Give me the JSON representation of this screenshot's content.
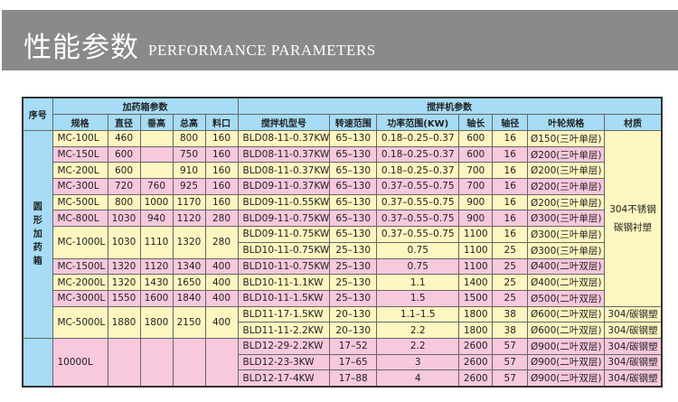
{
  "banner": {
    "title_cn": "性能参数",
    "title_en": "PERFORMANCE PARAMETERS"
  },
  "table": {
    "header": {
      "seq": "序号",
      "tank_group": "加药箱参数",
      "mixer_group": "搅拌机参数",
      "cols": [
        "规格",
        "直径",
        "垂高",
        "总高",
        "料口",
        "搅拌机型号",
        "转速范围",
        "功率范围(KW)",
        "轴长",
        "轴径",
        "叶轮规格",
        "材质"
      ]
    },
    "groups": [
      {
        "label": "圆形加药箱"
      },
      {
        "label": ""
      }
    ],
    "tanks": [
      {
        "spec": "MC-100L",
        "dia": "460",
        "vh": "",
        "th": "800",
        "port": "160"
      },
      {
        "spec": "MC-150L",
        "dia": "600",
        "vh": "",
        "th": "750",
        "port": "160"
      },
      {
        "spec": "MC-200L",
        "dia": "600",
        "vh": "",
        "th": "910",
        "port": "160"
      },
      {
        "spec": "MC-300L",
        "dia": "720",
        "vh": "760",
        "th": "925",
        "port": "160"
      },
      {
        "spec": "MC-500L",
        "dia": "800",
        "vh": "1000",
        "th": "1170",
        "port": "160"
      },
      {
        "spec": "MC-800L",
        "dia": "1030",
        "vh": "940",
        "th": "1120",
        "port": "280"
      },
      {
        "spec": "MC-1000L",
        "dia": "1030",
        "vh": "1110",
        "th": "1320",
        "port": "280"
      },
      {
        "spec": "MC-1500L",
        "dia": "1320",
        "vh": "1120",
        "th": "1340",
        "port": "400"
      },
      {
        "spec": "MC-2000L",
        "dia": "1320",
        "vh": "1430",
        "th": "1650",
        "port": "400"
      },
      {
        "spec": "MC-3000L",
        "dia": "1550",
        "vh": "1600",
        "th": "1840",
        "port": "400"
      },
      {
        "spec": "MC-5000L",
        "dia": "1880",
        "vh": "1800",
        "th": "2150",
        "port": "400"
      },
      {
        "spec": "10000L",
        "dia": "",
        "vh": "",
        "th": "",
        "port": ""
      }
    ],
    "mixers": [
      {
        "model": "BLD08-11-0.37KW",
        "speed": "65–130",
        "power": "0.18–0.25–0.37",
        "shaft_len": "600",
        "shaft_dia": "16",
        "impeller": "Ø150(三叶单层)"
      },
      {
        "model": "BLD08-11-0.37KW",
        "speed": "65–130",
        "power": "0.18–0.25–0.37",
        "shaft_len": "600",
        "shaft_dia": "16",
        "impeller": "Ø200(三叶单层)"
      },
      {
        "model": "BLD08-11-0.37KW",
        "speed": "65–130",
        "power": "0.18–0.25–0.37",
        "shaft_len": "700",
        "shaft_dia": "16",
        "impeller": "Ø200(三叶单层)"
      },
      {
        "model": "BLD09-11-0.37KW",
        "speed": "65–130",
        "power": "0.37–0.55–0.75",
        "shaft_len": "700",
        "shaft_dia": "16",
        "impeller": "Ø200(三叶单层)"
      },
      {
        "model": "BLD09-11-0.55KW",
        "speed": "65–130",
        "power": "0.37–0.55–0.75",
        "shaft_len": "900",
        "shaft_dia": "16",
        "impeller": "Ø200(三叶单层)"
      },
      {
        "model": "BLD09-11-0.75KW",
        "speed": "65–130",
        "power": "0.37–0.55–0.75",
        "shaft_len": "900",
        "shaft_dia": "16",
        "impeller": "Ø300(三叶单层)"
      },
      {
        "model": "BLD09-11-0.75KW",
        "speed": "65–130",
        "power": "0.37–0.55–0.75",
        "shaft_len": "1100",
        "shaft_dia": "16",
        "impeller": "Ø300(三叶单层)"
      },
      {
        "model": "BLD10-11-0.75KW",
        "speed": "25–130",
        "power": "0.75",
        "shaft_len": "1100",
        "shaft_dia": "25",
        "impeller": "Ø300(三叶单层)"
      },
      {
        "model": "BLD10-11-0.75KW",
        "speed": "25–130",
        "power": "0.75",
        "shaft_len": "1100",
        "shaft_dia": "25",
        "impeller": "Ø400(二叶双层)"
      },
      {
        "model": "BLD10-11-1.1KW",
        "speed": "25–130",
        "power": "1.1",
        "shaft_len": "1400",
        "shaft_dia": "25",
        "impeller": "Ø400(二叶双层)"
      },
      {
        "model": "BLD10-11-1.5KW",
        "speed": "25–130",
        "power": "1.5",
        "shaft_len": "1500",
        "shaft_dia": "25",
        "impeller": "Ø500(二叶双层)"
      },
      {
        "model": "BLD11-17-1.5KW",
        "speed": "20–130",
        "power": "1.1–1.5",
        "shaft_len": "1800",
        "shaft_dia": "38",
        "impeller": "Ø600(二叶双层)",
        "material": "304/碳钢塑"
      },
      {
        "model": "BLD11-11-2.2KW",
        "speed": "20–130",
        "power": "2.2",
        "shaft_len": "1800",
        "shaft_dia": "38",
        "impeller": "Ø600(二叶双层)",
        "material": "304/碳钢塑"
      },
      {
        "model": "BLD12-29-2.2KW",
        "speed": "17–52",
        "power": "2.2",
        "shaft_len": "2600",
        "shaft_dia": "57",
        "impeller": "Ø900(二叶双层)",
        "material": "304/碳钢塑"
      },
      {
        "model": "BLD12-23-3KW",
        "speed": "17–65",
        "power": "3",
        "shaft_len": "2600",
        "shaft_dia": "57",
        "impeller": "Ø900(二叶双层)",
        "material": "304/碳钢塑"
      },
      {
        "model": "BLD12-17-4KW",
        "speed": "17–88",
        "power": "4",
        "shaft_len": "2600",
        "shaft_dia": "57",
        "impeller": "Ø900(二叶双层)",
        "material": "304/碳钢塑"
      }
    ],
    "material_merged": [
      "304不锈钢",
      "碳钢衬塑"
    ]
  },
  "colors": {
    "banner": "#8a8a8a",
    "header": "#a6dcf5",
    "row_yellow": "#fdf6c0",
    "row_pink": "#f8c8dc"
  }
}
